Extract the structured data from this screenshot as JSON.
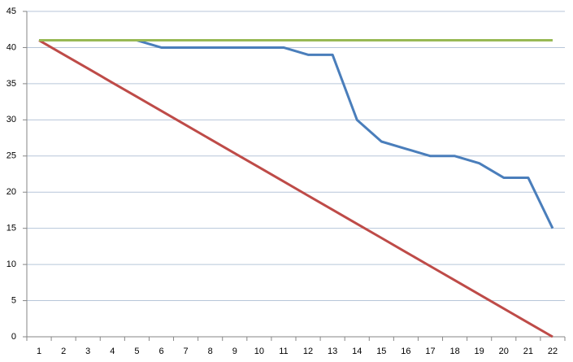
{
  "chart_data": {
    "type": "line",
    "categories": [
      1,
      2,
      3,
      4,
      5,
      6,
      7,
      8,
      9,
      10,
      11,
      12,
      13,
      14,
      15,
      16,
      17,
      18,
      19,
      20,
      21,
      22
    ],
    "series": [
      {
        "color": "#4a7ebb",
        "values": [
          41,
          41,
          41,
          41,
          41,
          40,
          40,
          40,
          40,
          40,
          40,
          39,
          39,
          30,
          27,
          26,
          25,
          25,
          24,
          22,
          22,
          15
        ]
      },
      {
        "color": "#be4b48",
        "values": [
          41,
          39.05,
          37.1,
          35.14,
          33.19,
          31.24,
          29.29,
          27.33,
          25.38,
          23.43,
          21.48,
          19.52,
          17.57,
          15.62,
          13.67,
          11.71,
          9.76,
          7.81,
          5.86,
          3.9,
          1.95,
          0
        ]
      },
      {
        "color": "#98b954",
        "values": [
          41,
          41,
          41,
          41,
          41,
          41,
          41,
          41,
          41,
          41,
          41,
          41,
          41,
          41,
          41,
          41,
          41,
          41,
          41,
          41,
          41,
          41
        ]
      }
    ],
    "ylim": [
      0,
      45
    ],
    "yticks": [
      0,
      5,
      10,
      15,
      20,
      25,
      30,
      35,
      40,
      45
    ],
    "grid": true
  }
}
